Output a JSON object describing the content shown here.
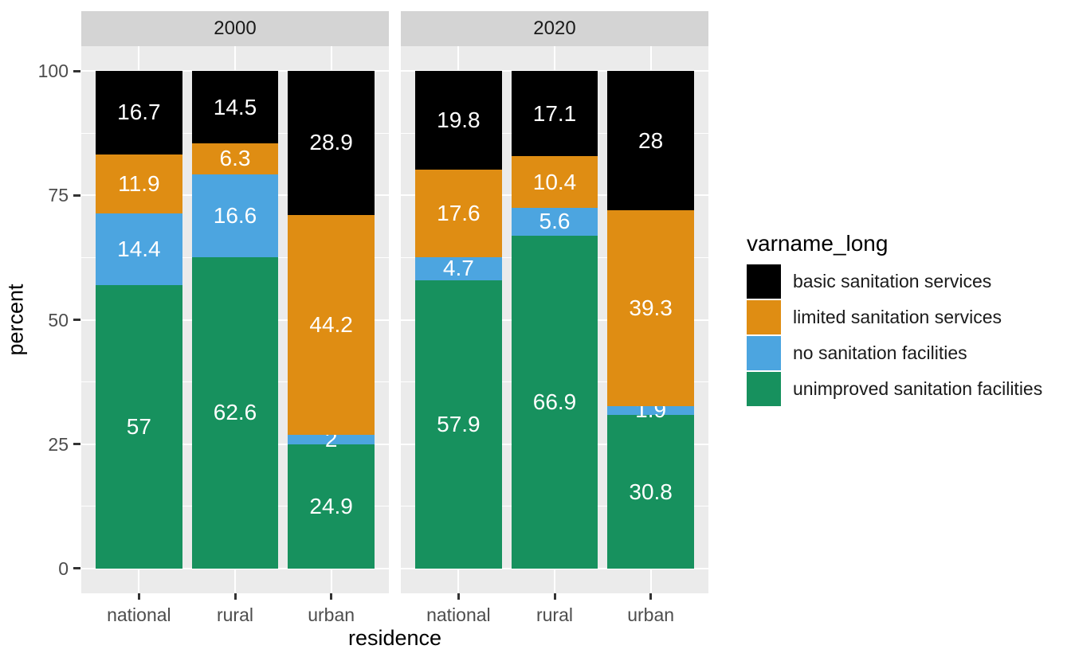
{
  "chart_data": {
    "type": "bar",
    "stacked": true,
    "orientation": "vertical",
    "xlabel": "residence",
    "ylabel": "percent",
    "ylim": [
      0,
      100
    ],
    "yticks": [
      0,
      25,
      50,
      75,
      100
    ],
    "grid": true,
    "categories": [
      "national",
      "rural",
      "urban"
    ],
    "legend_title": "varname_long",
    "legend_position": "right",
    "legend_items": [
      {
        "label": "basic sanitation services",
        "color": "#000000"
      },
      {
        "label": "limited sanitation services",
        "color": "#df8d13"
      },
      {
        "label": "no sanitation facilities",
        "color": "#4ca5e0"
      },
      {
        "label": "unimproved sanitation facilities",
        "color": "#17915e"
      }
    ],
    "stack_order_bottom_to_top": [
      "unimproved sanitation facilities",
      "no sanitation facilities",
      "limited sanitation services",
      "basic sanitation services"
    ],
    "facets": [
      {
        "label": "2000",
        "series": [
          {
            "name": "unimproved sanitation facilities",
            "color": "#17915e",
            "values": [
              57,
              62.6,
              24.9
            ]
          },
          {
            "name": "no sanitation facilities",
            "color": "#4ca5e0",
            "values": [
              14.4,
              16.6,
              2
            ]
          },
          {
            "name": "limited sanitation services",
            "color": "#df8d13",
            "values": [
              11.9,
              6.3,
              44.2
            ]
          },
          {
            "name": "basic sanitation services",
            "color": "#000000",
            "values": [
              16.7,
              14.5,
              28.9
            ]
          }
        ]
      },
      {
        "label": "2020",
        "series": [
          {
            "name": "unimproved sanitation facilities",
            "color": "#17915e",
            "values": [
              57.9,
              66.9,
              30.8
            ]
          },
          {
            "name": "no sanitation facilities",
            "color": "#4ca5e0",
            "values": [
              4.7,
              5.6,
              1.9
            ]
          },
          {
            "name": "limited sanitation services",
            "color": "#df8d13",
            "values": [
              17.6,
              10.4,
              39.3
            ]
          },
          {
            "name": "basic sanitation services",
            "color": "#000000",
            "values": [
              19.8,
              17.1,
              28
            ]
          }
        ]
      }
    ],
    "colors": {
      "background": "#ffffff",
      "panel_background": "#ebebeb",
      "strip_background": "#d4d4d4",
      "gridline": "#ffffff",
      "tick": "#333333",
      "axis_text": "#4d4d4d",
      "title_text": "#000000",
      "bar_label_text": "#ffffff"
    }
  }
}
